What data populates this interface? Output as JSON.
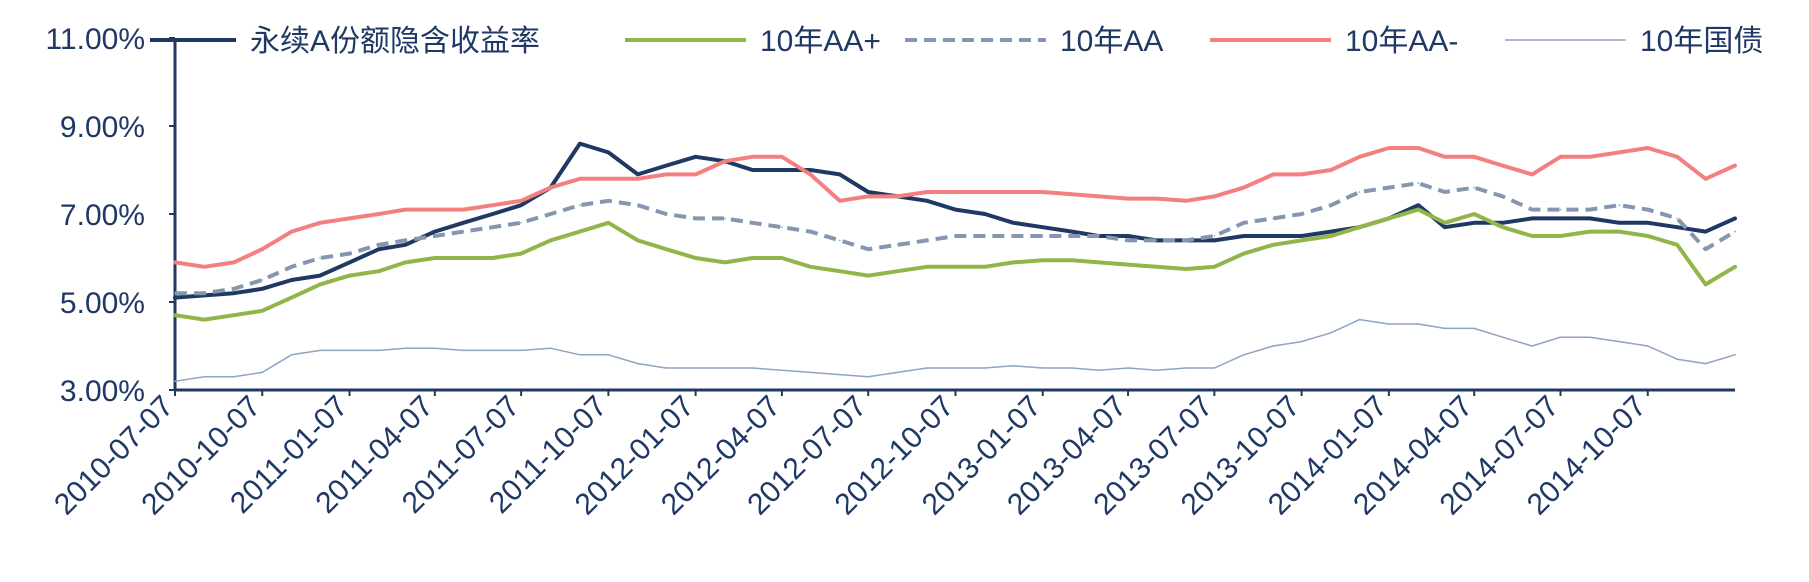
{
  "chart_data": {
    "type": "line",
    "title": "",
    "xlabel": "",
    "ylabel": "",
    "ylim": [
      3.0,
      11.0
    ],
    "yticks": [
      "11.00%",
      "9.00%",
      "7.00%",
      "5.00%",
      "3.00%"
    ],
    "ytick_values": [
      11,
      9,
      7,
      5,
      3
    ],
    "x_range": [
      "2010-07-07",
      "2015-01-07"
    ],
    "xticks": [
      "2010-07-07",
      "2010-10-07",
      "2011-01-07",
      "2011-04-07",
      "2011-07-07",
      "2011-10-07",
      "2012-01-07",
      "2012-04-07",
      "2012-07-07",
      "2012-10-07",
      "2013-01-07",
      "2013-04-07",
      "2013-07-07",
      "2013-10-07",
      "2014-01-07",
      "2014-04-07",
      "2014-07-07",
      "2014-10-07"
    ],
    "grid": false,
    "legend_position": "top",
    "x": [
      "2010-07-07",
      "2010-08-07",
      "2010-09-07",
      "2010-10-07",
      "2010-11-07",
      "2010-12-07",
      "2011-01-07",
      "2011-02-07",
      "2011-03-07",
      "2011-04-07",
      "2011-05-07",
      "2011-06-07",
      "2011-07-07",
      "2011-08-07",
      "2011-09-07",
      "2011-10-07",
      "2011-11-07",
      "2011-12-07",
      "2012-01-07",
      "2012-02-07",
      "2012-03-07",
      "2012-04-07",
      "2012-05-07",
      "2012-06-07",
      "2012-07-07",
      "2012-08-07",
      "2012-09-07",
      "2012-10-07",
      "2012-11-07",
      "2012-12-07",
      "2013-01-07",
      "2013-02-07",
      "2013-03-07",
      "2013-04-07",
      "2013-05-07",
      "2013-06-07",
      "2013-07-07",
      "2013-08-07",
      "2013-09-07",
      "2013-10-07",
      "2013-11-07",
      "2013-12-07",
      "2014-01-07",
      "2014-02-07",
      "2014-03-07",
      "2014-04-07",
      "2014-05-07",
      "2014-06-07",
      "2014-07-07",
      "2014-08-07",
      "2014-09-07",
      "2014-10-07",
      "2014-11-07",
      "2014-12-07",
      "2015-01-07"
    ],
    "series": [
      {
        "name": "永续A份额隐含收益率",
        "color": "#1f3864",
        "style": "solid",
        "width": 4,
        "values": [
          5.1,
          5.15,
          5.2,
          5.3,
          5.5,
          5.6,
          5.9,
          6.2,
          6.3,
          6.6,
          6.8,
          7.0,
          7.2,
          7.6,
          8.6,
          8.4,
          7.9,
          8.1,
          8.3,
          8.2,
          8.0,
          8.0,
          8.0,
          7.9,
          7.5,
          7.4,
          7.3,
          7.1,
          7.0,
          6.8,
          6.7,
          6.6,
          6.5,
          6.5,
          6.4,
          6.4,
          6.4,
          6.5,
          6.5,
          6.5,
          6.6,
          6.7,
          6.9,
          7.2,
          6.7,
          6.8,
          6.8,
          6.9,
          6.9,
          6.9,
          6.8,
          6.8,
          6.7,
          6.6,
          6.9
        ]
      },
      {
        "name": "10年AA+",
        "color": "#92b54a",
        "style": "solid",
        "width": 4,
        "values": [
          4.7,
          4.6,
          4.7,
          4.8,
          5.1,
          5.4,
          5.6,
          5.7,
          5.9,
          6.0,
          6.0,
          6.0,
          6.1,
          6.4,
          6.6,
          6.8,
          6.4,
          6.2,
          6.0,
          5.9,
          6.0,
          6.0,
          5.8,
          5.7,
          5.6,
          5.7,
          5.8,
          5.8,
          5.8,
          5.9,
          5.95,
          5.95,
          5.9,
          5.85,
          5.8,
          5.75,
          5.8,
          6.1,
          6.3,
          6.4,
          6.5,
          6.7,
          6.9,
          7.1,
          6.8,
          7.0,
          6.7,
          6.5,
          6.5,
          6.6,
          6.6,
          6.5,
          6.3,
          5.4,
          5.8
        ]
      },
      {
        "name": "10年AA",
        "color": "#8496b0",
        "style": "dashed",
        "width": 4,
        "values": [
          5.2,
          5.2,
          5.3,
          5.5,
          5.8,
          6.0,
          6.1,
          6.3,
          6.4,
          6.5,
          6.6,
          6.7,
          6.8,
          7.0,
          7.2,
          7.3,
          7.2,
          7.0,
          6.9,
          6.9,
          6.8,
          6.7,
          6.6,
          6.4,
          6.2,
          6.3,
          6.4,
          6.5,
          6.5,
          6.5,
          6.5,
          6.5,
          6.5,
          6.4,
          6.4,
          6.4,
          6.5,
          6.8,
          6.9,
          7.0,
          7.2,
          7.5,
          7.6,
          7.7,
          7.5,
          7.6,
          7.4,
          7.1,
          7.1,
          7.1,
          7.2,
          7.1,
          6.9,
          6.2,
          6.6
        ]
      },
      {
        "name": "10年AA-",
        "color": "#f47f7f",
        "style": "solid",
        "width": 4,
        "values": [
          5.9,
          5.8,
          5.9,
          6.2,
          6.6,
          6.8,
          6.9,
          7.0,
          7.1,
          7.1,
          7.1,
          7.2,
          7.3,
          7.6,
          7.8,
          7.8,
          7.8,
          7.9,
          7.9,
          8.2,
          8.3,
          8.3,
          7.9,
          7.3,
          7.4,
          7.4,
          7.5,
          7.5,
          7.5,
          7.5,
          7.5,
          7.45,
          7.4,
          7.35,
          7.35,
          7.3,
          7.4,
          7.6,
          7.9,
          7.9,
          8.0,
          8.3,
          8.5,
          8.5,
          8.3,
          8.3,
          8.1,
          7.9,
          8.3,
          8.3,
          8.4,
          8.5,
          8.3,
          7.8,
          8.1
        ]
      },
      {
        "name": "10年国债",
        "color": "#8fa3c3",
        "style": "solid",
        "width": 1.5,
        "values": [
          3.2,
          3.3,
          3.3,
          3.4,
          3.8,
          3.9,
          3.9,
          3.9,
          3.95,
          3.95,
          3.9,
          3.9,
          3.9,
          3.95,
          3.8,
          3.8,
          3.6,
          3.5,
          3.5,
          3.5,
          3.5,
          3.45,
          3.4,
          3.35,
          3.3,
          3.4,
          3.5,
          3.5,
          3.5,
          3.55,
          3.5,
          3.5,
          3.45,
          3.5,
          3.45,
          3.5,
          3.5,
          3.8,
          4.0,
          4.1,
          4.3,
          4.6,
          4.5,
          4.5,
          4.4,
          4.4,
          4.2,
          4.0,
          4.2,
          4.2,
          4.1,
          4.0,
          3.7,
          3.6,
          3.8
        ]
      }
    ]
  }
}
